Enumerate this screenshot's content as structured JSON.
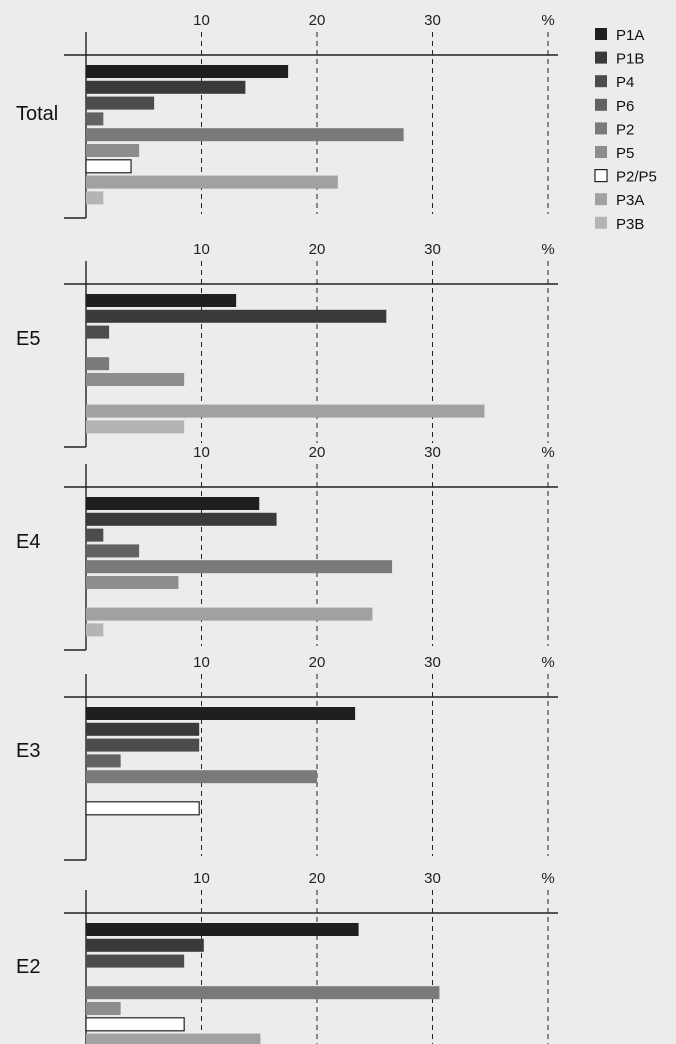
{
  "chart_data": {
    "type": "bar",
    "orientation": "horizontal",
    "x_ticks": [
      10,
      20,
      30
    ],
    "x_unit": "%",
    "xlim": [
      0,
      40
    ],
    "grid": "dashed vertical lines at 10, 20, 30",
    "legend_placement": "top-right",
    "series": [
      {
        "name": "P1A",
        "color": "#1f1f1f",
        "style": "filled"
      },
      {
        "name": "P1B",
        "color": "#3a3a3a",
        "style": "filled"
      },
      {
        "name": "P4",
        "color": "#4c4c4c",
        "style": "filled"
      },
      {
        "name": "P6",
        "color": "#626262",
        "style": "filled"
      },
      {
        "name": "P2",
        "color": "#7a7a7a",
        "style": "filled"
      },
      {
        "name": "P5",
        "color": "#8d8d8d",
        "style": "filled"
      },
      {
        "name": "P2/P5",
        "color": "#ffffff",
        "style": "outline"
      },
      {
        "name": "P3A",
        "color": "#a1a1a1",
        "style": "filled"
      },
      {
        "name": "P3B",
        "color": "#b4b4b4",
        "style": "filled"
      }
    ],
    "panels": [
      {
        "label": "Total",
        "values": [
          17.5,
          13.8,
          5.9,
          1.5,
          27.5,
          4.6,
          3.9,
          21.8,
          1.5
        ]
      },
      {
        "label": "E5",
        "values": [
          13,
          26,
          2,
          0,
          2,
          8.5,
          0,
          34.5,
          8.5
        ]
      },
      {
        "label": "E4",
        "values": [
          15,
          16.5,
          1.5,
          4.6,
          26.5,
          8,
          0,
          24.8,
          1.5
        ]
      },
      {
        "label": "E3",
        "values": [
          23.3,
          9.8,
          9.8,
          3,
          20,
          0,
          9.8,
          0,
          0
        ]
      },
      {
        "label": "E2",
        "values": [
          23.6,
          10.2,
          8.5,
          0,
          30.6,
          3,
          8.5,
          15.1,
          0
        ]
      }
    ]
  }
}
